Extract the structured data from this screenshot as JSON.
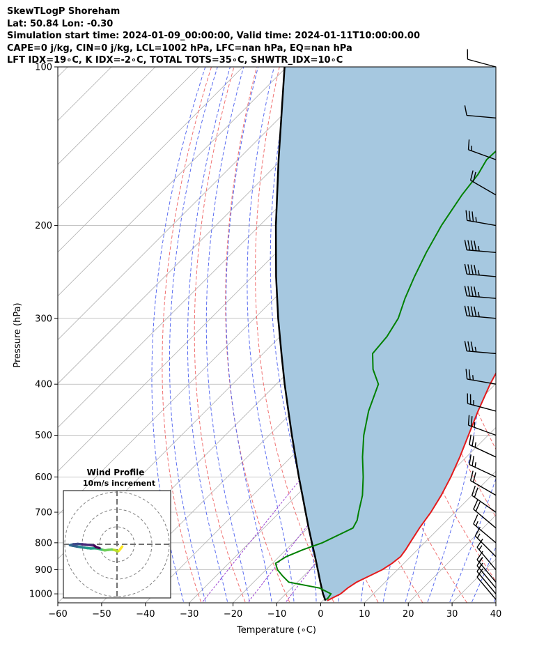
{
  "header": {
    "lines": [
      "SkewTLogP Shoreham",
      "Lat: 50.84   Lon: -0.30",
      "Simulation start time: 2024-01-09_00:00:00, Valid time: 2024-01-11T10:00:00.00",
      "CAPE=0 j/kg, CIN=0 j/kg, LCL=1002 hPa, LFC=nan hPa, EQ=nan hPa",
      "LFT IDX=19∘C, K IDX=-2∘C, TOTAL TOTS=35∘C, SHWTR_IDX=10∘C"
    ]
  },
  "chart_data": {
    "type": "skewt-logp",
    "xlabel": "Temperature (∘C)",
    "ylabel": "Pressure (hPa)",
    "xlim": [
      -60,
      40
    ],
    "ylim": [
      1040,
      100
    ],
    "x_ticks": [
      -60,
      -50,
      -40,
      -30,
      -20,
      -10,
      0,
      10,
      20,
      30,
      40
    ],
    "y_ticks": [
      1000,
      900,
      800,
      700,
      600,
      500,
      400,
      300,
      200,
      100
    ],
    "grid": true,
    "log_pressure": true,
    "temperature_color": "#e41a1c",
    "dewpoint_color": "#008000",
    "parcel_color": "#000000",
    "cape_fill_color": "#a6c8e0",
    "dry_adiabat_color": "#f07070",
    "moist_adiabat_color": "#5a6cf0",
    "mixing_ratio_color": "#9b40d0",
    "temperature_profile": [
      {
        "p": 1030,
        "t": 1.0
      },
      {
        "p": 1000,
        "t": 2.5
      },
      {
        "p": 975,
        "t": 2.8
      },
      {
        "p": 950,
        "t": 3.5
      },
      {
        "p": 925,
        "t": 5.0
      },
      {
        "p": 900,
        "t": 6.5
      },
      {
        "p": 875,
        "t": 7.3
      },
      {
        "p": 850,
        "t": 7.7
      },
      {
        "p": 825,
        "t": 7.3
      },
      {
        "p": 800,
        "t": 6.7
      },
      {
        "p": 750,
        "t": 5.5
      },
      {
        "p": 700,
        "t": 4.5
      },
      {
        "p": 650,
        "t": 3.0
      },
      {
        "p": 600,
        "t": 1.0
      },
      {
        "p": 550,
        "t": -1.5
      },
      {
        "p": 500,
        "t": -4.5
      },
      {
        "p": 450,
        "t": -7.8
      },
      {
        "p": 400,
        "t": -11.2
      },
      {
        "p": 350,
        "t": -14.4
      },
      {
        "p": 300,
        "t": -17.3
      },
      {
        "p": 275,
        "t": -18.8
      },
      {
        "p": 250,
        "t": -18.9
      },
      {
        "p": 225,
        "t": -20.1
      },
      {
        "p": 200,
        "t": -23.8
      },
      {
        "p": 175,
        "t": -27.3
      },
      {
        "p": 150,
        "t": -32.0
      },
      {
        "p": 125,
        "t": -37.3
      },
      {
        "p": 110,
        "t": -41.3
      },
      {
        "p": 100,
        "t": -44.8
      }
    ],
    "dewpoint_profile": [
      {
        "p": 1025,
        "t": 0.5
      },
      {
        "p": 1020,
        "t": 0.6
      },
      {
        "p": 1000,
        "t": 0.3
      },
      {
        "p": 975,
        "t": -3.6
      },
      {
        "p": 950,
        "t": -12.0
      },
      {
        "p": 925,
        "t": -14.8
      },
      {
        "p": 900,
        "t": -17.4
      },
      {
        "p": 875,
        "t": -19.3
      },
      {
        "p": 850,
        "t": -18.4
      },
      {
        "p": 825,
        "t": -16.2
      },
      {
        "p": 800,
        "t": -13.3
      },
      {
        "p": 750,
        "t": -9.7
      },
      {
        "p": 725,
        "t": -10.5
      },
      {
        "p": 700,
        "t": -12.0
      },
      {
        "p": 650,
        "t": -15.0
      },
      {
        "p": 600,
        "t": -19.0
      },
      {
        "p": 550,
        "t": -23.7
      },
      {
        "p": 500,
        "t": -28.4
      },
      {
        "p": 450,
        "t": -32.8
      },
      {
        "p": 400,
        "t": -36.7
      },
      {
        "p": 375,
        "t": -41.3
      },
      {
        "p": 350,
        "t": -45.0
      },
      {
        "p": 325,
        "t": -45.6
      },
      {
        "p": 300,
        "t": -47.2
      },
      {
        "p": 275,
        "t": -50.2
      },
      {
        "p": 250,
        "t": -53.0
      },
      {
        "p": 225,
        "t": -55.8
      },
      {
        "p": 200,
        "t": -58.5
      },
      {
        "p": 175,
        "t": -60.8
      },
      {
        "p": 160,
        "t": -61.8
      },
      {
        "p": 150,
        "t": -63.2
      },
      {
        "p": 125,
        "t": -62.4
      },
      {
        "p": 100,
        "t": -62.1
      }
    ],
    "parcel_profile": [
      {
        "p": 1030,
        "t": 0.6
      },
      {
        "p": 1000,
        "t": -1.5
      },
      {
        "p": 950,
        "t": -4.8
      },
      {
        "p": 900,
        "t": -8.2
      },
      {
        "p": 850,
        "t": -11.8
      },
      {
        "p": 800,
        "t": -15.7
      },
      {
        "p": 750,
        "t": -19.8
      },
      {
        "p": 700,
        "t": -24.1
      },
      {
        "p": 650,
        "t": -28.7
      },
      {
        "p": 600,
        "t": -33.7
      },
      {
        "p": 550,
        "t": -39.0
      },
      {
        "p": 500,
        "t": -44.8
      },
      {
        "p": 450,
        "t": -51.1
      },
      {
        "p": 400,
        "t": -58.1
      },
      {
        "p": 350,
        "t": -65.8
      },
      {
        "p": 300,
        "t": -74.6
      },
      {
        "p": 250,
        "t": -84.6
      },
      {
        "p": 200,
        "t": -96.3
      },
      {
        "p": 150,
        "t": -110.7
      },
      {
        "p": 100,
        "t": -130.5
      }
    ],
    "wind_barbs": [
      {
        "p": 100,
        "speed_kt": 10,
        "dir_deg": 285
      },
      {
        "p": 125,
        "speed_kt": 10,
        "dir_deg": 275
      },
      {
        "p": 150,
        "speed_kt": 15,
        "dir_deg": 290
      },
      {
        "p": 175,
        "speed_kt": 20,
        "dir_deg": 300
      },
      {
        "p": 200,
        "speed_kt": 35,
        "dir_deg": 280
      },
      {
        "p": 225,
        "speed_kt": 45,
        "dir_deg": 275
      },
      {
        "p": 250,
        "speed_kt": 45,
        "dir_deg": 275
      },
      {
        "p": 275,
        "speed_kt": 45,
        "dir_deg": 275
      },
      {
        "p": 300,
        "speed_kt": 45,
        "dir_deg": 275
      },
      {
        "p": 350,
        "speed_kt": 35,
        "dir_deg": 275
      },
      {
        "p": 400,
        "speed_kt": 25,
        "dir_deg": 280
      },
      {
        "p": 450,
        "speed_kt": 25,
        "dir_deg": 285
      },
      {
        "p": 500,
        "speed_kt": 25,
        "dir_deg": 290
      },
      {
        "p": 550,
        "speed_kt": 25,
        "dir_deg": 295
      },
      {
        "p": 600,
        "speed_kt": 25,
        "dir_deg": 295
      },
      {
        "p": 650,
        "speed_kt": 20,
        "dir_deg": 300
      },
      {
        "p": 700,
        "speed_kt": 20,
        "dir_deg": 305
      },
      {
        "p": 750,
        "speed_kt": 20,
        "dir_deg": 310
      },
      {
        "p": 800,
        "speed_kt": 15,
        "dir_deg": 310
      },
      {
        "p": 850,
        "speed_kt": 15,
        "dir_deg": 315
      },
      {
        "p": 900,
        "speed_kt": 15,
        "dir_deg": 320
      },
      {
        "p": 950,
        "speed_kt": 15,
        "dir_deg": 320
      },
      {
        "p": 975,
        "speed_kt": 15,
        "dir_deg": 320
      },
      {
        "p": 1000,
        "speed_kt": 10,
        "dir_deg": 320
      },
      {
        "p": 1025,
        "speed_kt": 10,
        "dir_deg": 320
      }
    ],
    "hodograph": {
      "title": "Wind Profile",
      "subtitle": "10m/s increment",
      "rings_ms": [
        10,
        20,
        30
      ],
      "trace": [
        {
          "u": 3.0,
          "v": -1.3
        },
        {
          "u": 2.0,
          "v": -2.6
        },
        {
          "u": 1.2,
          "v": -3.6
        },
        {
          "u": 0.4,
          "v": -4.1
        },
        {
          "u": -1.0,
          "v": -3.4
        },
        {
          "u": -3.0,
          "v": -3.0
        },
        {
          "u": -5.0,
          "v": -3.2
        },
        {
          "u": -7.0,
          "v": -3.5
        },
        {
          "u": -9.0,
          "v": -3.0
        },
        {
          "u": -11.0,
          "v": -2.5
        },
        {
          "u": -13.0,
          "v": -2.3
        },
        {
          "u": -15.0,
          "v": -2.4
        },
        {
          "u": -17.0,
          "v": -2.2
        },
        {
          "u": -19.0,
          "v": -1.9
        },
        {
          "u": -21.0,
          "v": -1.6
        },
        {
          "u": -23.0,
          "v": -1.3
        },
        {
          "u": -25.5,
          "v": -0.8
        },
        {
          "u": -27.0,
          "v": -0.5
        },
        {
          "u": -25.0,
          "v": 0.0
        },
        {
          "u": -22.5,
          "v": 0.2
        },
        {
          "u": -20.0,
          "v": 0.0
        },
        {
          "u": -18.0,
          "v": -0.2
        },
        {
          "u": -15.0,
          "v": -0.5
        },
        {
          "u": -13.0,
          "v": -0.8
        },
        {
          "u": -12.0,
          "v": -1.6
        },
        {
          "u": -10.0,
          "v": -2.2
        }
      ]
    }
  }
}
